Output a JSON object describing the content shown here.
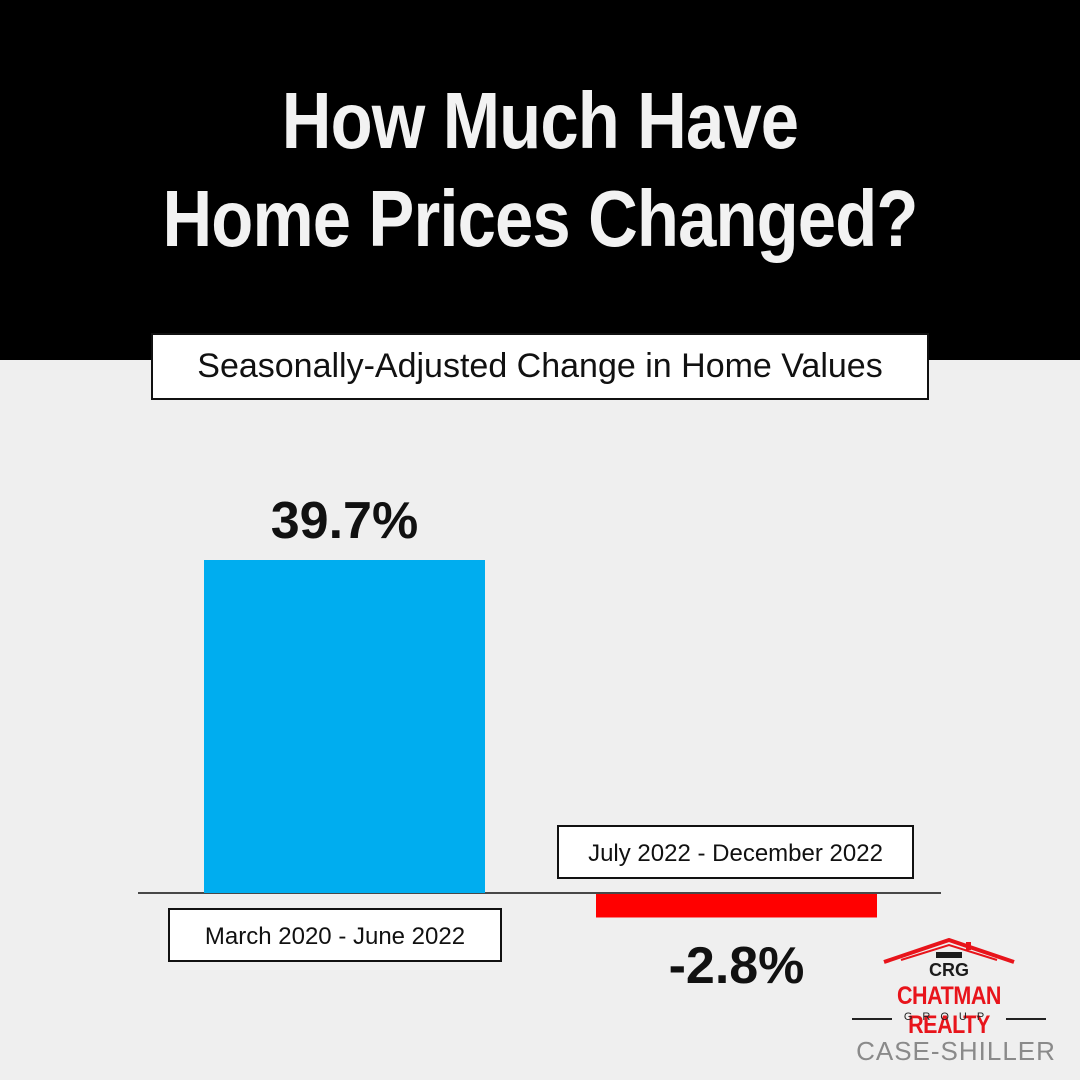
{
  "header": {
    "title_line1": "How Much Have",
    "title_line2": "Home Prices Changed?"
  },
  "chart_data": {
    "type": "bar",
    "title": "How Much Have Home Prices Changed?",
    "subtitle": "Seasonally-Adjusted Change in Home Values",
    "categories": [
      "March 2020 - June 2022",
      "July 2022 - December 2022"
    ],
    "values": [
      39.7,
      -2.8
    ],
    "value_labels": [
      "39.7%",
      "-2.8%"
    ],
    "colors": [
      "#00adef",
      "#ff0000"
    ],
    "ylim": [
      -5,
      40
    ],
    "grid": false,
    "xlabel": "",
    "ylabel": ""
  },
  "logo": {
    "initials": "CRG",
    "name": "CHATMAN REALTY",
    "tagline": "GROUP",
    "color": "#e8141b"
  },
  "source": "CASE-SHILLER"
}
